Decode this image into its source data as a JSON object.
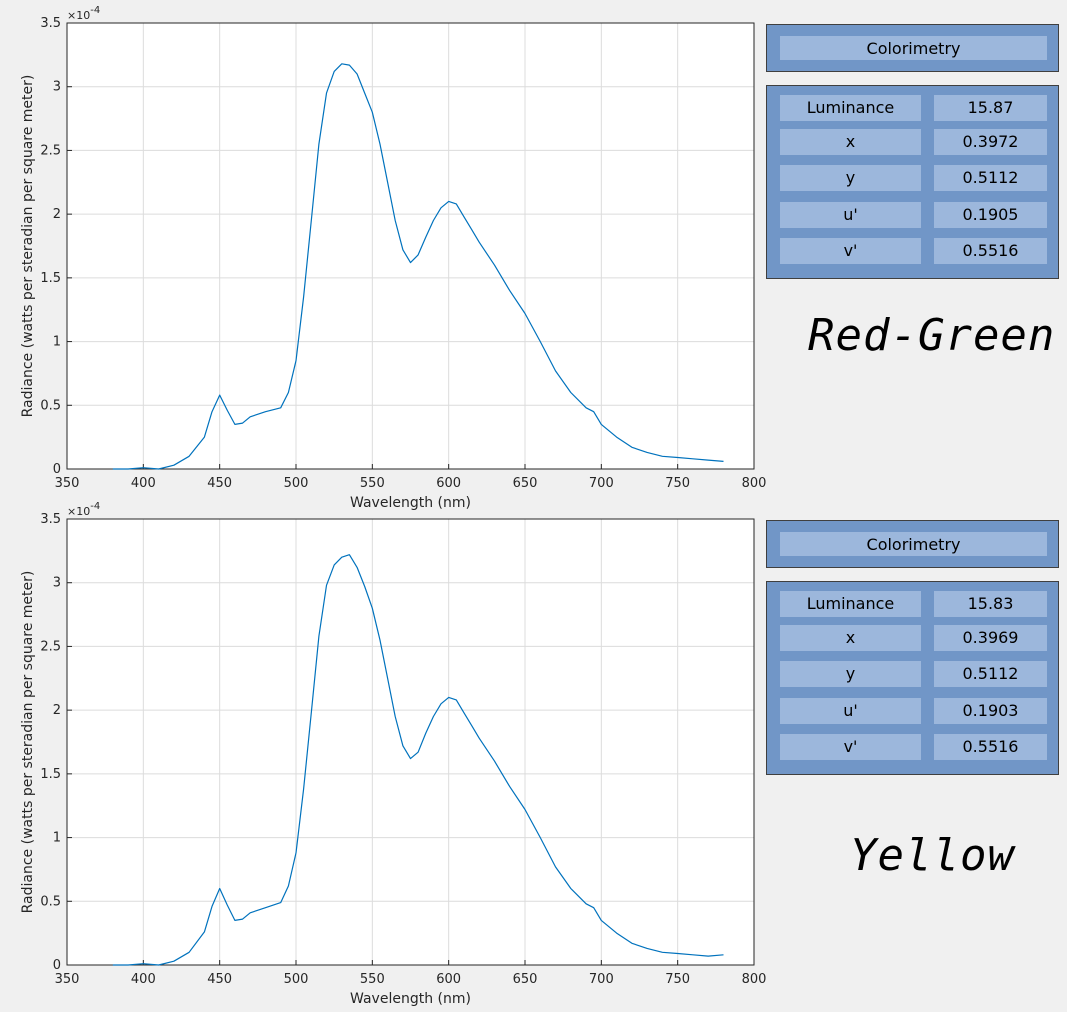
{
  "panels": [
    {
      "colorimetry_title": "Colorimetry",
      "rows": [
        {
          "label": "Luminance",
          "value": "15.87"
        },
        {
          "label": "x",
          "value": "0.3972"
        },
        {
          "label": "y",
          "value": "0.5112"
        },
        {
          "label": "u'",
          "value": "0.1905"
        },
        {
          "label": "v'",
          "value": "0.5516"
        }
      ],
      "big_label": "Red-Green"
    },
    {
      "colorimetry_title": "Colorimetry",
      "rows": [
        {
          "label": "Luminance",
          "value": "15.83"
        },
        {
          "label": "x",
          "value": "0.3969"
        },
        {
          "label": "y",
          "value": "0.5112"
        },
        {
          "label": "u'",
          "value": "0.1903"
        },
        {
          "label": "v'",
          "value": "0.5516"
        }
      ],
      "big_label": "Yellow"
    }
  ],
  "colors": {
    "line": "#0072bd",
    "grid": "#dcdcdc",
    "axis": "#262626",
    "panel": "#7196c7",
    "cell": "#9cb7dc",
    "background": "#f0f0f0"
  },
  "chart_data": [
    {
      "type": "line",
      "xlabel": "Wavelength (nm)",
      "ylabel": "Radiance (watts per steradian per square meter)",
      "exponent_label": "×10",
      "exponent_power": "-4",
      "xlim": [
        350,
        800
      ],
      "ylim": [
        0,
        3.5
      ],
      "xticks": [
        350,
        400,
        450,
        500,
        550,
        600,
        650,
        700,
        750,
        800
      ],
      "yticks": [
        0,
        0.5,
        1,
        1.5,
        2,
        2.5,
        3,
        3.5
      ],
      "ytick_labels": [
        "0",
        "0.5",
        "1",
        "1.5",
        "2",
        "2.5",
        "3",
        "3.5"
      ],
      "grid": true,
      "series": [
        {
          "x": [
            380,
            390,
            400,
            410,
            420,
            430,
            440,
            445,
            450,
            455,
            460,
            465,
            470,
            480,
            490,
            495,
            500,
            505,
            510,
            515,
            520,
            525,
            530,
            535,
            540,
            545,
            550,
            555,
            560,
            565,
            570,
            575,
            580,
            585,
            590,
            595,
            600,
            605,
            610,
            615,
            620,
            630,
            640,
            650,
            660,
            670,
            680,
            690,
            695,
            700,
            710,
            720,
            730,
            740,
            750,
            760,
            770,
            780
          ],
          "y": [
            0.0,
            0.0,
            0.01,
            0.0,
            0.03,
            0.1,
            0.25,
            0.45,
            0.58,
            0.46,
            0.35,
            0.36,
            0.41,
            0.45,
            0.48,
            0.6,
            0.85,
            1.35,
            1.95,
            2.55,
            2.95,
            3.12,
            3.18,
            3.17,
            3.1,
            2.95,
            2.8,
            2.55,
            2.25,
            1.95,
            1.72,
            1.62,
            1.68,
            1.82,
            1.95,
            2.05,
            2.1,
            2.08,
            1.98,
            1.88,
            1.78,
            1.6,
            1.4,
            1.22,
            1.0,
            0.77,
            0.6,
            0.48,
            0.45,
            0.35,
            0.25,
            0.17,
            0.13,
            0.1,
            0.09,
            0.08,
            0.07,
            0.06
          ]
        }
      ]
    },
    {
      "type": "line",
      "xlabel": "Wavelength (nm)",
      "ylabel": "Radiance (watts per steradian per square meter)",
      "exponent_label": "×10",
      "exponent_power": "-4",
      "xlim": [
        350,
        800
      ],
      "ylim": [
        0,
        3.5
      ],
      "xticks": [
        350,
        400,
        450,
        500,
        550,
        600,
        650,
        700,
        750,
        800
      ],
      "yticks": [
        0,
        0.5,
        1,
        1.5,
        2,
        2.5,
        3,
        3.5
      ],
      "ytick_labels": [
        "0",
        "0.5",
        "1",
        "1.5",
        "2",
        "2.5",
        "3",
        "3.5"
      ],
      "grid": true,
      "series": [
        {
          "x": [
            380,
            390,
            400,
            410,
            420,
            430,
            440,
            445,
            450,
            455,
            460,
            465,
            470,
            480,
            490,
            495,
            500,
            505,
            510,
            515,
            520,
            525,
            530,
            535,
            540,
            545,
            550,
            555,
            560,
            565,
            570,
            575,
            580,
            585,
            590,
            595,
            600,
            605,
            610,
            615,
            620,
            630,
            640,
            650,
            660,
            670,
            680,
            690,
            695,
            700,
            710,
            720,
            730,
            740,
            750,
            760,
            770,
            780
          ],
          "y": [
            0.0,
            0.0,
            0.01,
            0.0,
            0.03,
            0.1,
            0.26,
            0.46,
            0.6,
            0.47,
            0.35,
            0.36,
            0.41,
            0.45,
            0.49,
            0.62,
            0.88,
            1.38,
            1.98,
            2.58,
            2.98,
            3.14,
            3.2,
            3.22,
            3.12,
            2.97,
            2.8,
            2.55,
            2.25,
            1.95,
            1.72,
            1.62,
            1.67,
            1.82,
            1.95,
            2.05,
            2.1,
            2.08,
            1.98,
            1.88,
            1.78,
            1.6,
            1.4,
            1.22,
            1.0,
            0.77,
            0.6,
            0.48,
            0.45,
            0.35,
            0.25,
            0.17,
            0.13,
            0.1,
            0.09,
            0.08,
            0.07,
            0.08
          ]
        }
      ]
    }
  ]
}
